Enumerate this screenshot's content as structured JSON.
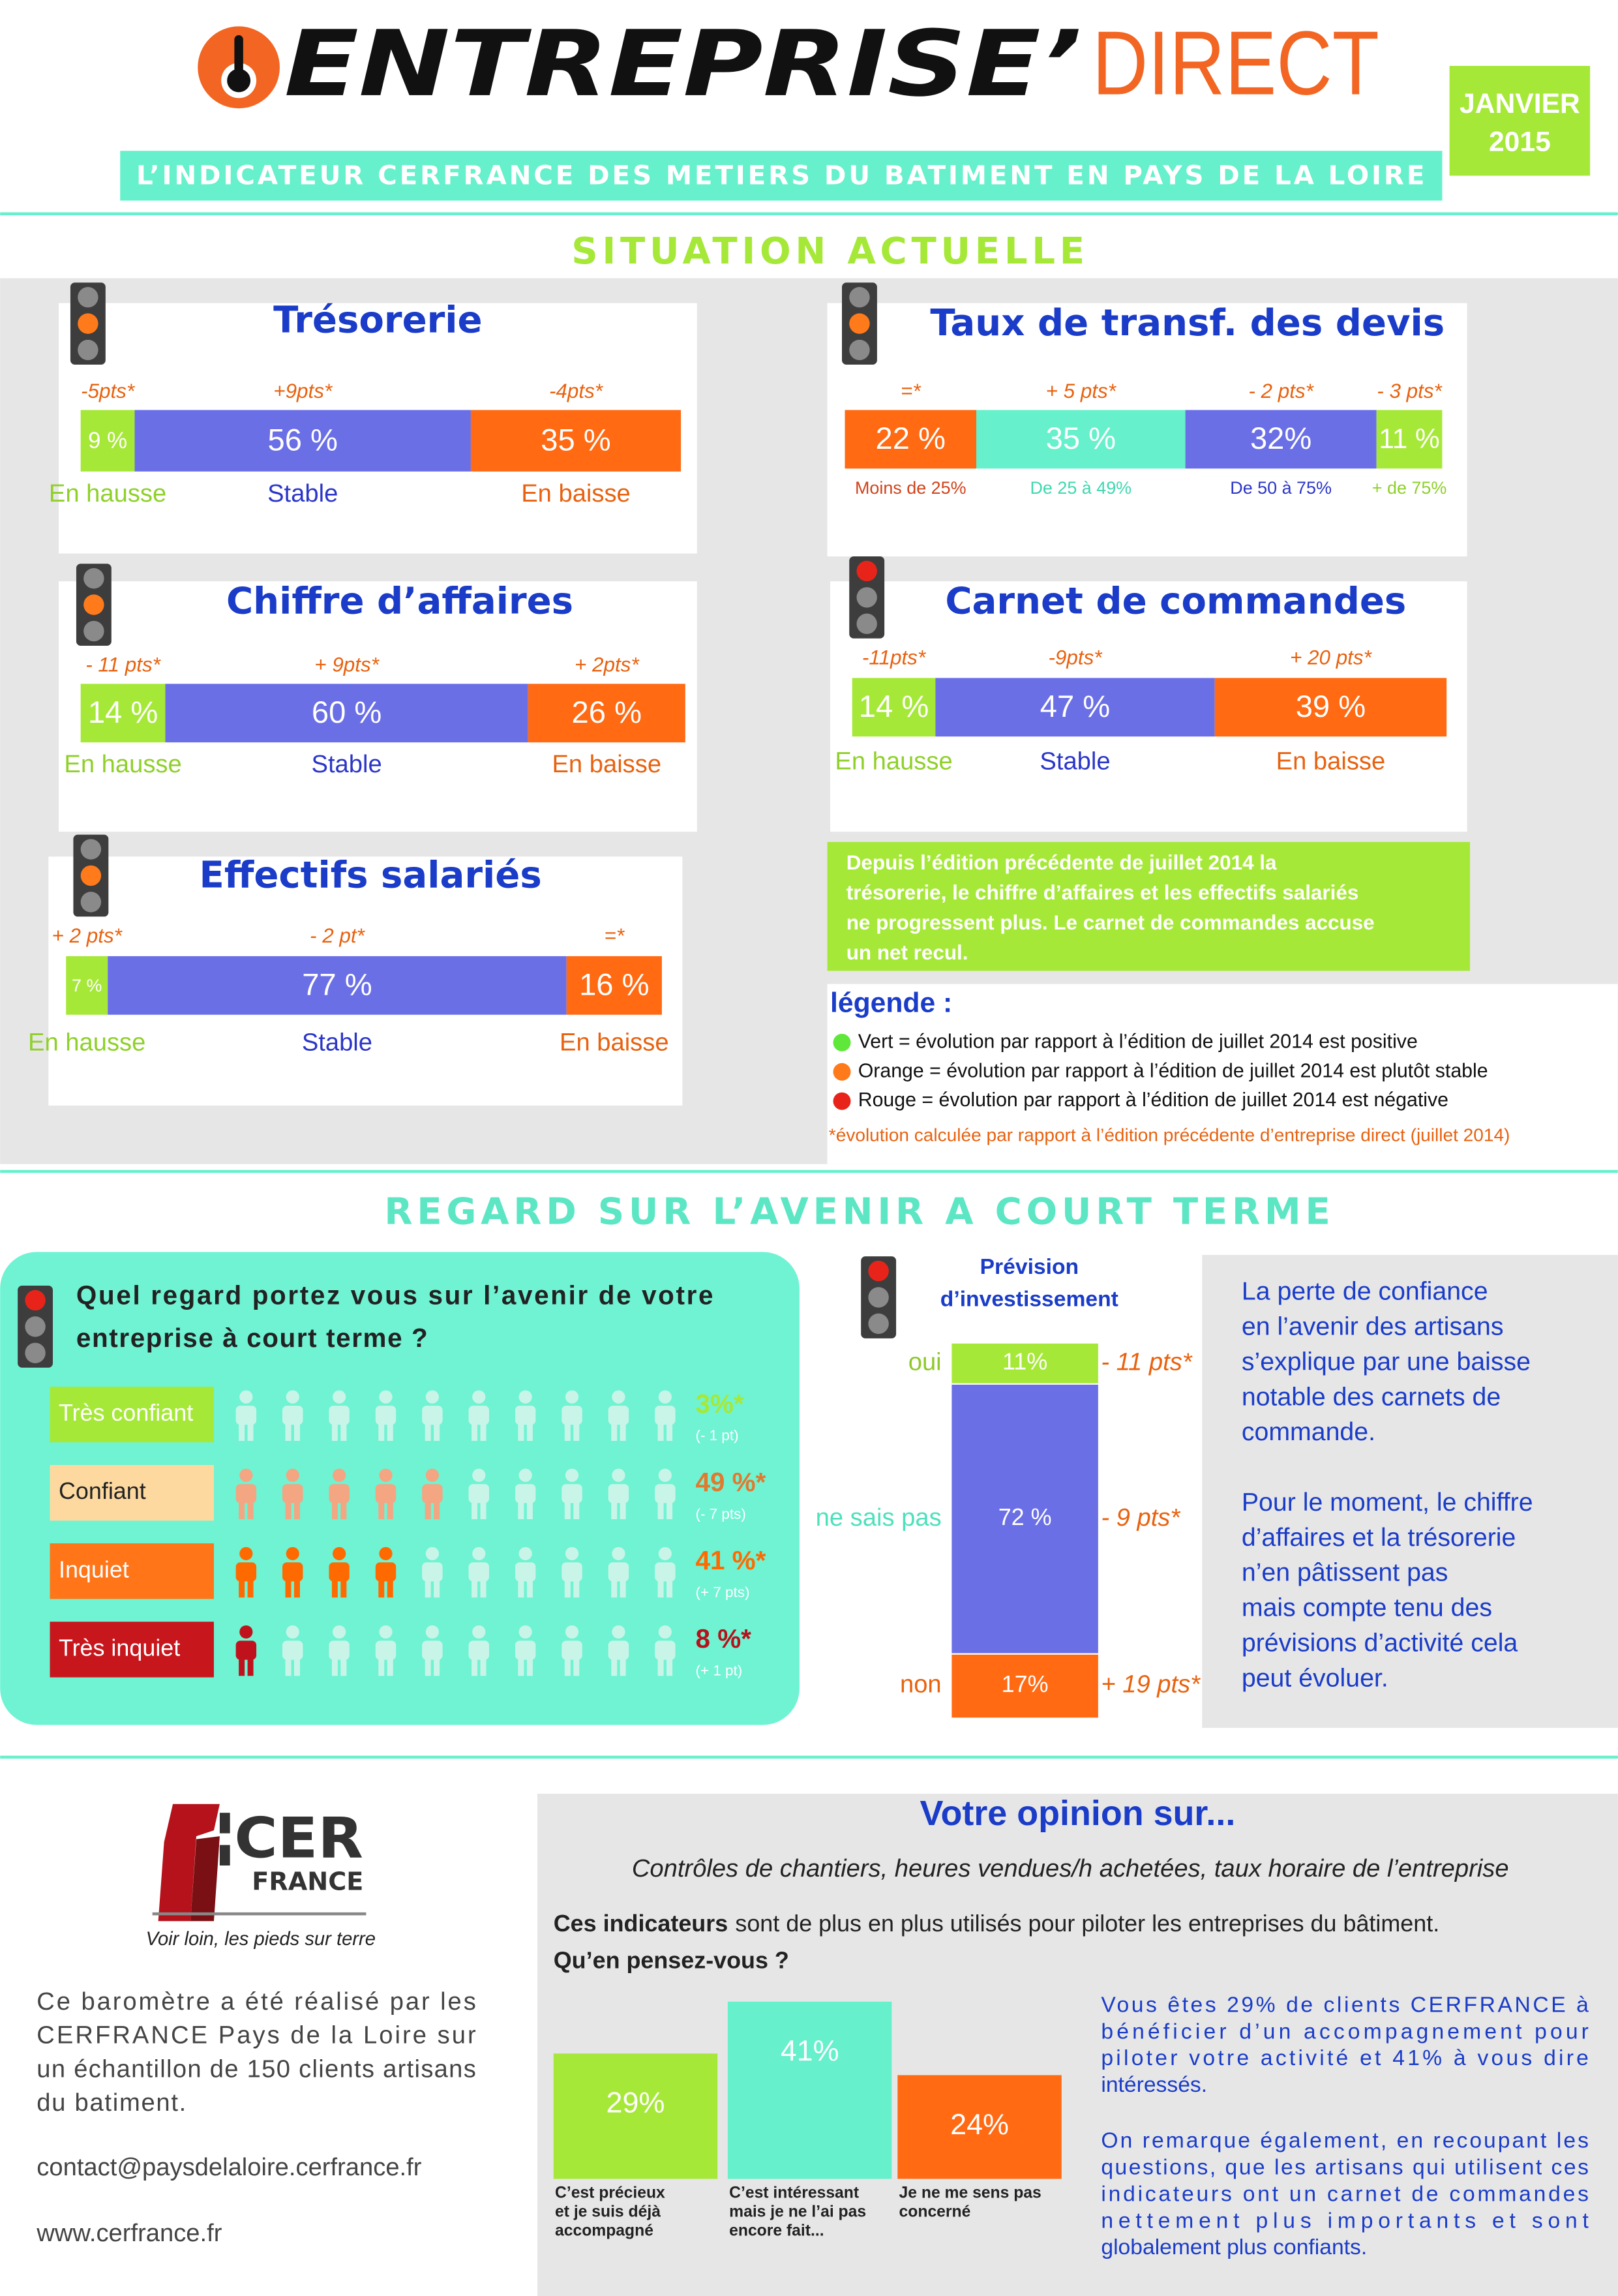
{
  "header": {
    "brand": "ENTREPRISE’",
    "brand_suffix": "DIRECT",
    "date": [
      "JANVIER",
      "2015"
    ],
    "subtitle": "L’INDICATEUR CERFRANCE DES METIERS DU BATIMENT EN PAYS DE LA LOIRE"
  },
  "situation": {
    "title": "SITUATION ACTUELLE",
    "panels": [
      {
        "title": "Trésorerie",
        "light": "orange",
        "segments": [
          {
            "value": 9,
            "label": "9 %",
            "change": "-5pts*",
            "category": "En hausse",
            "color": "#a6e838",
            "text_color": "#8fd02a"
          },
          {
            "value": 56,
            "label": "56 %",
            "change": "+9pts*",
            "category": "Stable",
            "color": "#6b6fe6",
            "text_color": "#2b36c8"
          },
          {
            "value": 35,
            "label": "35 %",
            "change": "-4pts*",
            "category": "En baisse",
            "color": "#ff6a13",
            "text_color": "#e8620f"
          }
        ]
      },
      {
        "title": "Taux de transf. des devis",
        "light": "orange",
        "segments": [
          {
            "value": 22,
            "label": "22 %",
            "change": "=*",
            "category": "Moins de 25%",
            "color": "#ff6a13",
            "text_color": "#d1431a"
          },
          {
            "value": 35,
            "label": "35 %",
            "change": "+ 5 pts*",
            "category": "De 25 à 49%",
            "color": "#66f0cc",
            "text_color": "#3fd8b0"
          },
          {
            "value": 32,
            "label": "32%",
            "change": "- 2 pts*",
            "category": "De 50 à 75%",
            "color": "#6b6fe6",
            "text_color": "#2b36c8"
          },
          {
            "value": 11,
            "label": "11 %",
            "change": "- 3 pts*",
            "category": "+ de 75%",
            "color": "#a6e838",
            "text_color": "#8fd02a"
          }
        ]
      },
      {
        "title": "Chiffre d’affaires",
        "light": "orange",
        "segments": [
          {
            "value": 14,
            "label": "14 %",
            "change": "- 11 pts*",
            "category": "En hausse",
            "color": "#a6e838",
            "text_color": "#8fd02a"
          },
          {
            "value": 60,
            "label": "60 %",
            "change": "+ 9pts*",
            "category": "Stable",
            "color": "#6b6fe6",
            "text_color": "#2b36c8"
          },
          {
            "value": 26,
            "label": "26 %",
            "change": "+ 2pts*",
            "category": "En baisse",
            "color": "#ff6a13",
            "text_color": "#e8620f"
          }
        ]
      },
      {
        "title": "Carnet de commandes",
        "light": "red",
        "segments": [
          {
            "value": 14,
            "label": "14 %",
            "change": "-11pts*",
            "category": "En hausse",
            "color": "#a6e838",
            "text_color": "#8fd02a"
          },
          {
            "value": 47,
            "label": "47 %",
            "change": "-9pts*",
            "category": "Stable",
            "color": "#6b6fe6",
            "text_color": "#2b36c8"
          },
          {
            "value": 39,
            "label": "39 %",
            "change": "+ 20  pts*",
            "category": "En baisse",
            "color": "#ff6a13",
            "text_color": "#e8620f"
          }
        ]
      },
      {
        "title": "Effectifs salariés",
        "light": "orange",
        "segments": [
          {
            "value": 7,
            "label": "7 %",
            "change": "+ 2 pts*",
            "category": "En hausse",
            "color": "#a6e838",
            "text_color": "#8fd02a"
          },
          {
            "value": 77,
            "label": "77 %",
            "change": "- 2 pt*",
            "category": "Stable",
            "color": "#6b6fe6",
            "text_color": "#2b36c8"
          },
          {
            "value": 16,
            "label": "16 %",
            "change": "=*",
            "category": "En baisse",
            "color": "#ff6a13",
            "text_color": "#e8620f"
          }
        ]
      }
    ],
    "summary": [
      "Depuis l’édition précédente de juillet 2014 la",
      "trésorerie, le chiffre d’affaires et les effectifs salariés",
      "ne progressent plus. Le  carnet de commandes accuse",
      "un net recul."
    ],
    "legend": {
      "title": "légende :",
      "items": [
        {
          "text": "Vert = évolution par rapport à l’édition de juillet 2014 est positive",
          "color": "#5fe83a"
        },
        {
          "text": "Orange = évolution par rapport à l’édition de juillet 2014 est plutôt stable",
          "color": "#ff7a1a"
        },
        {
          "text": "Rouge = évolution par rapport à l’édition de juillet 2014 est négative",
          "color": "#e8241a"
        }
      ],
      "footnote": "*évolution calculée par rapport à l’édition précédente d’entreprise direct (juillet 2014)"
    }
  },
  "avenir": {
    "title": "REGARD SUR L’AVENIR A COURT TERME",
    "question": {
      "light": "red",
      "lines": [
        "Quel regard portez vous sur l’avenir de votre",
        "entreprise à court terme ?"
      ],
      "rows": [
        {
          "label": "Très confiant",
          "value": 3,
          "value_label": "3%*",
          "change": "(- 1 pt)",
          "box_color": "#a6e838",
          "label_color": "#ffffff",
          "color": "#a6e838",
          "value_color": "#a6e838"
        },
        {
          "label": "Confiant",
          "value": 49,
          "value_label": "49 %*",
          "change": "(- 7 pts)",
          "box_color": "#fdd9a0",
          "label_color": "#222222",
          "color": "#f4a582",
          "value_color": "#e07a2f"
        },
        {
          "label": "Inquiet",
          "value": 41,
          "value_label": "41 %*",
          "change": "(+ 7 pts)",
          "box_color": "#ff7518",
          "label_color": "#ffffff",
          "color": "#ff6a00",
          "value_color": "#ff6a00"
        },
        {
          "label": "Très inquiet",
          "value": 8,
          "value_label": "8 %*",
          "change": "(+ 1 pt)",
          "box_color": "#c8161d",
          "label_color": "#ffffff",
          "color": "#c0121c",
          "value_color": "#b5121b"
        }
      ]
    },
    "investment": {
      "light": "red",
      "title": [
        "Prévision",
        "d’investissement"
      ],
      "segments": [
        {
          "category": "oui",
          "value": 11,
          "value_label": "11%",
          "change": "- 11 pts*",
          "color": "#a6e838",
          "category_color": "#8fc82a"
        },
        {
          "category": "ne sais pas",
          "value": 72,
          "value_label": "72 %",
          "change": "- 9 pts*",
          "color": "#6b6fe6",
          "category_color": "#4fe0bd"
        },
        {
          "category": "non",
          "value": 17,
          "value_label": "17%",
          "change": "+ 19 pts*",
          "color": "#ff6a13",
          "category_color": "#e8620f"
        }
      ]
    },
    "comment": [
      [
        "La perte de confiance",
        "en l’avenir des artisans",
        "s’explique par une baisse",
        "notable des carnets de",
        "commande."
      ],
      [
        "Pour le moment, le chiffre",
        "d’affaires et la trésorerie",
        "n’en pâtissent pas",
        "mais compte tenu des",
        "prévisions d’activité cela",
        "peut évoluer."
      ]
    ]
  },
  "footer": {
    "logo": {
      "name": "CER",
      "name_2": "FRANCE",
      "tagline": "Voir loin, les pieds sur terre"
    },
    "about": [
      "Ce baromètre a été réalisé par les",
      "CERFRANCE Pays de la Loire sur",
      "un échantillon de 150 clients artisans",
      "du batiment."
    ],
    "contact": "contact@paysdelaloire.cerfrance.fr",
    "website": "www.cerfrance.fr"
  },
  "opinion": {
    "title": "Votre opinion sur...",
    "subtitle": "Contrôles de chantiers, heures vendues/h achetées, taux horaire de l’entreprise",
    "question": [
      "Ces indicateurs",
      "sont de plus en plus utilisés pour piloter les entreprises du bâtiment.",
      "Qu’en pensez-vous ?"
    ],
    "bars": [
      {
        "value": 29,
        "value_label": "29%",
        "category": [
          "C’est précieux",
          "et je suis déjà",
          "accompagné"
        ],
        "color": "#a6e838"
      },
      {
        "value": 41,
        "value_label": "41%",
        "category": [
          "C’est intéressant",
          "mais je ne l’ai pas",
          "encore fait..."
        ],
        "color": "#66f0cc"
      },
      {
        "value": 24,
        "value_label": "24%",
        "category": [
          "Je ne me sens pas",
          "concerné"
        ],
        "color": "#ff6a13"
      }
    ],
    "comment": [
      [
        "Vous êtes 29% de clients CERFRANCE à",
        "bénéficier d’un accompagnement pour",
        "piloter votre activité et 41% à vous dire",
        "intéressés."
      ],
      [
        "On remarque également, en recoupant les",
        "questions, que les artisans qui utilisent ces",
        "indicateurs ont un carnet de commandes",
        "nettement plus importants et sont",
        "globalement plus confiants."
      ]
    ]
  }
}
